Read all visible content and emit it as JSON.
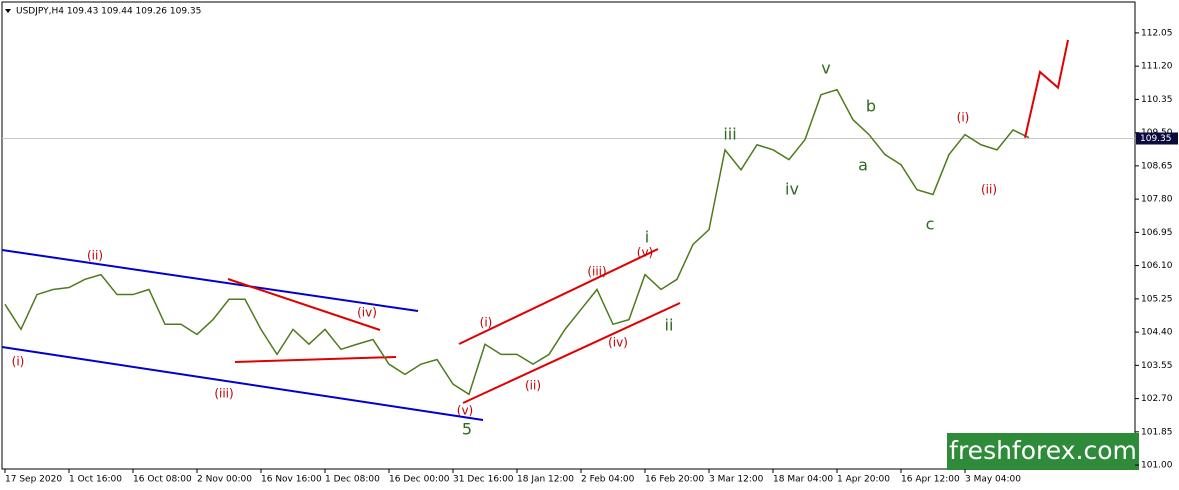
{
  "chart_data": {
    "type": "line",
    "title": "USDJPY,H4  109.43 109.44 109.26 109.35",
    "x_labels": [
      "17 Sep 2020",
      "1 Oct 16:00",
      "16 Oct 08:00",
      "2 Nov 00:00",
      "16 Nov 16:00",
      "1 Dec 08:00",
      "16 Dec 00:00",
      "31 Dec 16:00",
      "18 Jan 12:00",
      "2 Feb 04:00",
      "16 Feb 20:00",
      "3 Mar 12:00",
      "18 Mar 04:00",
      "1 Apr 20:00",
      "16 Apr 12:00",
      "3 May 04:00"
    ],
    "series": [
      {
        "name": "USDJPY",
        "color": "#4f7a1c",
        "values": [
          105.11,
          104.47,
          105.36,
          105.49,
          105.54,
          105.75,
          105.87,
          105.36,
          105.36,
          105.49,
          104.6,
          104.6,
          104.34,
          104.72,
          105.24,
          105.24,
          104.47,
          103.83,
          104.47,
          104.09,
          104.47,
          103.96,
          104.09,
          104.21,
          103.58,
          103.32,
          103.58,
          103.7,
          103.07,
          102.81,
          104.09,
          103.83,
          103.83,
          103.58,
          103.83,
          104.47,
          104.98,
          105.49,
          104.6,
          104.72,
          105.87,
          105.49,
          105.75,
          106.64,
          107.02,
          109.06,
          108.55,
          109.19,
          109.06,
          108.81,
          109.32,
          110.47,
          110.6,
          109.83,
          109.45,
          108.94,
          108.68,
          108.04,
          107.92,
          108.94,
          109.45,
          109.19,
          109.06,
          109.57,
          109.37
        ]
      },
      {
        "name": "projection",
        "color": "#e00000",
        "values": [
          109.37,
          111.05,
          110.65,
          111.87
        ]
      }
    ],
    "ylim": [
      100.9,
      112.84
    ],
    "yticks": [
      {
        "value": 101.0,
        "label": "101.00"
      },
      101.85,
      {
        "value": 102.7,
        "label": "102.70"
      },
      103.55,
      {
        "value": 104.4,
        "label": "104.40"
      },
      105.25,
      {
        "value": 106.1,
        "label": "106.10"
      },
      106.95,
      {
        "value": 107.8,
        "label": "107.80"
      },
      108.65,
      {
        "value": 109.5,
        "label": "109.50"
      },
      110.35,
      {
        "value": 111.2,
        "label": "111.20"
      },
      112.05
    ],
    "last_price": 109.35,
    "annotations": [
      {
        "text": "(i)",
        "color": "#c00000"
      },
      {
        "text": "(ii)",
        "color": "#c00000"
      },
      {
        "text": "(iii)",
        "color": "#c00000"
      },
      {
        "text": "(iv)",
        "color": "#c00000"
      },
      {
        "text": "5",
        "color": "#2e6b1e"
      },
      {
        "text": "(v)",
        "color": "#c00000"
      },
      {
        "text": "(i)",
        "color": "#c00000"
      },
      {
        "text": "(ii)",
        "color": "#c00000"
      },
      {
        "text": "(iii)",
        "color": "#c00000"
      },
      {
        "text": "(iv)",
        "color": "#c00000"
      },
      {
        "text": "(v)",
        "color": "#c00000"
      },
      {
        "text": "i",
        "color": "#2e6b1e"
      },
      {
        "text": "ii",
        "color": "#2e6b1e"
      },
      {
        "text": "iii",
        "color": "#2e6b1e"
      },
      {
        "text": "iv",
        "color": "#2e6b1e"
      },
      {
        "text": "v",
        "color": "#2e6b1e"
      },
      {
        "text": "a",
        "color": "#2e6b1e"
      },
      {
        "text": "b",
        "color": "#2e6b1e"
      },
      {
        "text": "c",
        "color": "#2e6b1e"
      },
      {
        "text": "(i)",
        "color": "#c00000"
      },
      {
        "text": "(ii)",
        "color": "#c00000"
      }
    ],
    "watermark": "freshforex.com"
  }
}
